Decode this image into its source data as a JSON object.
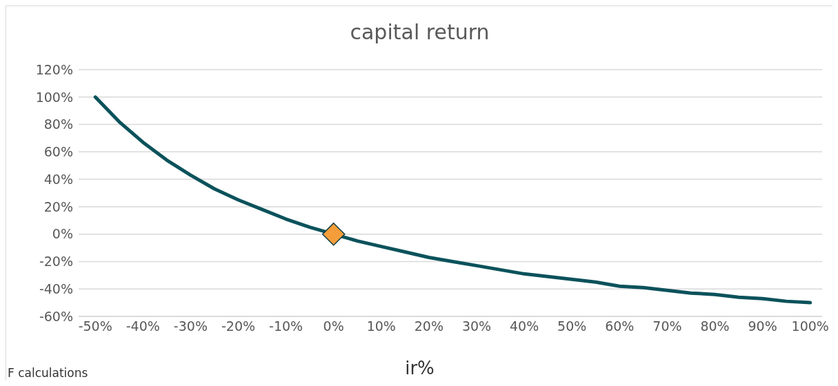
{
  "chart_data": {
    "type": "line",
    "title": "capital return",
    "xlabel": "ir%",
    "annotations": [
      "F calculations"
    ],
    "xlim": [
      -53.5,
      102.5
    ],
    "xticks": [
      {
        "value": -50,
        "label": "-50%"
      },
      {
        "value": -40,
        "label": "-40%"
      },
      {
        "value": -30,
        "label": "-30%"
      },
      {
        "value": -20,
        "label": "-20%"
      },
      {
        "value": -10,
        "label": "-10%"
      },
      {
        "value": 0,
        "label": "0%"
      },
      {
        "value": 10,
        "label": "10%"
      },
      {
        "value": 20,
        "label": "20%"
      },
      {
        "value": 30,
        "label": "30%"
      },
      {
        "value": 40,
        "label": "40%"
      },
      {
        "value": 50,
        "label": "50%"
      },
      {
        "value": 60,
        "label": "60%"
      },
      {
        "value": 70,
        "label": "70%"
      },
      {
        "value": 80,
        "label": "80%"
      },
      {
        "value": 90,
        "label": "90%"
      },
      {
        "value": 100,
        "label": "100%"
      }
    ],
    "ylim": [
      -60,
      120
    ],
    "yticks": [
      {
        "value": -60,
        "label": "-60%"
      },
      {
        "value": -40,
        "label": "-40%"
      },
      {
        "value": -20,
        "label": "-20%"
      },
      {
        "value": 0,
        "label": "0%"
      },
      {
        "value": 20,
        "label": "20%"
      },
      {
        "value": 40,
        "label": "40%"
      },
      {
        "value": 60,
        "label": "60%"
      },
      {
        "value": 80,
        "label": "80%"
      },
      {
        "value": 100,
        "label": "100%"
      },
      {
        "value": 120,
        "label": "120%"
      }
    ],
    "grid": "y",
    "series": [
      {
        "color": "#0b525b",
        "marker": "none",
        "x": [
          -50,
          -45,
          -40,
          -35,
          -30,
          -25,
          -20,
          -15,
          -10,
          -5,
          0,
          5,
          10,
          15,
          20,
          25,
          30,
          35,
          40,
          45,
          50,
          55,
          60,
          65,
          70,
          75,
          80,
          85,
          90,
          95,
          100
        ],
        "values": [
          100,
          82,
          67,
          54,
          43,
          33,
          25,
          18,
          11,
          5,
          0,
          -5,
          -9,
          -13,
          -17,
          -20,
          -23,
          -26,
          -29,
          -31,
          -33,
          -35,
          -38,
          -39,
          -41,
          -43,
          -44,
          -46,
          -47,
          -49,
          -50
        ]
      },
      {
        "type": "scatter",
        "color": "#f59d3a",
        "marker": "diamond",
        "x": [
          0
        ],
        "values": [
          0
        ]
      }
    ]
  }
}
